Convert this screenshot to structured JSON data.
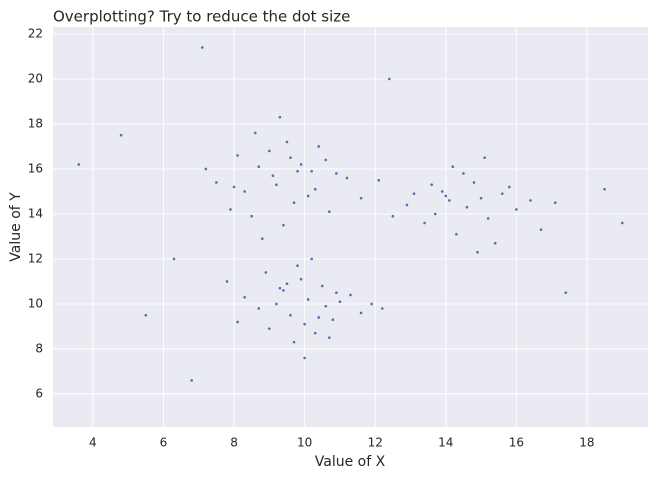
{
  "chart_data": {
    "type": "scatter",
    "title": "Overplotting? Try to reduce the dot size",
    "x_label": "Value of X",
    "y_label": "Value of Y",
    "color": "#4c72b0",
    "grid": true,
    "xlim": [
      2.87,
      19.73
    ],
    "ylim": [
      4.53,
      22.31
    ],
    "xticks": [
      4,
      6,
      8,
      10,
      12,
      14,
      16,
      18
    ],
    "yticks": [
      6,
      8,
      10,
      12,
      14,
      16,
      18,
      20,
      22
    ],
    "x": [
      9.2,
      8.7,
      10.1,
      9.8,
      8.3,
      10.6,
      9.5,
      7.9,
      11.2,
      9.0,
      8.5,
      10.3,
      9.7,
      8.1,
      10.9,
      9.3,
      7.5,
      11.6,
      9.9,
      8.8,
      10.4,
      9.1,
      8.0,
      10.7,
      9.6,
      7.2,
      12.1,
      9.4,
      8.6,
      10.2,
      10.1,
      9.6,
      10.5,
      9.2,
      10.8,
      9.9,
      8.7,
      11.3,
      10.3,
      9.4,
      10.0,
      8.9,
      11.0,
      9.7,
      10.6,
      8.3,
      11.6,
      10.2,
      9.5,
      10.9,
      9.0,
      10.4,
      9.8,
      11.9,
      8.1,
      10.7,
      9.3,
      10.0,
      12.2,
      7.8,
      14.6,
      13.9,
      15.2,
      14.1,
      15.6,
      14.8,
      13.4,
      16.0,
      14.3,
      15.0,
      12.9,
      14.5,
      16.4,
      13.7,
      15.4,
      14.2,
      17.1,
      13.1,
      15.8,
      14.9,
      12.5,
      14.0,
      16.7,
      15.1,
      13.6,
      3.6,
      4.8,
      5.5,
      6.3,
      7.1,
      18.5,
      19.0,
      17.4,
      6.8,
      12.4
    ],
    "values": [
      15.3,
      16.1,
      14.8,
      15.9,
      15.0,
      16.4,
      17.2,
      14.2,
      15.6,
      16.8,
      13.9,
      15.1,
      14.5,
      16.6,
      15.8,
      18.3,
      15.4,
      14.7,
      16.2,
      12.9,
      17.0,
      15.7,
      15.2,
      14.1,
      16.5,
      16.0,
      15.5,
      13.5,
      17.6,
      15.9,
      10.2,
      9.5,
      10.8,
      10.0,
      9.3,
      11.1,
      9.8,
      10.4,
      8.7,
      10.6,
      9.1,
      11.4,
      10.1,
      8.3,
      9.9,
      10.3,
      9.6,
      12.0,
      10.9,
      10.5,
      8.9,
      9.4,
      11.7,
      10.0,
      9.2,
      8.5,
      10.7,
      7.6,
      9.8,
      11.0,
      14.3,
      15.0,
      13.8,
      14.6,
      14.9,
      15.4,
      13.6,
      14.2,
      13.1,
      14.7,
      14.4,
      15.8,
      14.6,
      14.0,
      12.7,
      16.1,
      14.5,
      14.9,
      15.2,
      12.3,
      13.9,
      14.8,
      13.3,
      16.5,
      15.3,
      16.2,
      17.5,
      9.5,
      12.0,
      21.4,
      15.1,
      13.6,
      10.5,
      6.6,
      20.0
    ]
  }
}
